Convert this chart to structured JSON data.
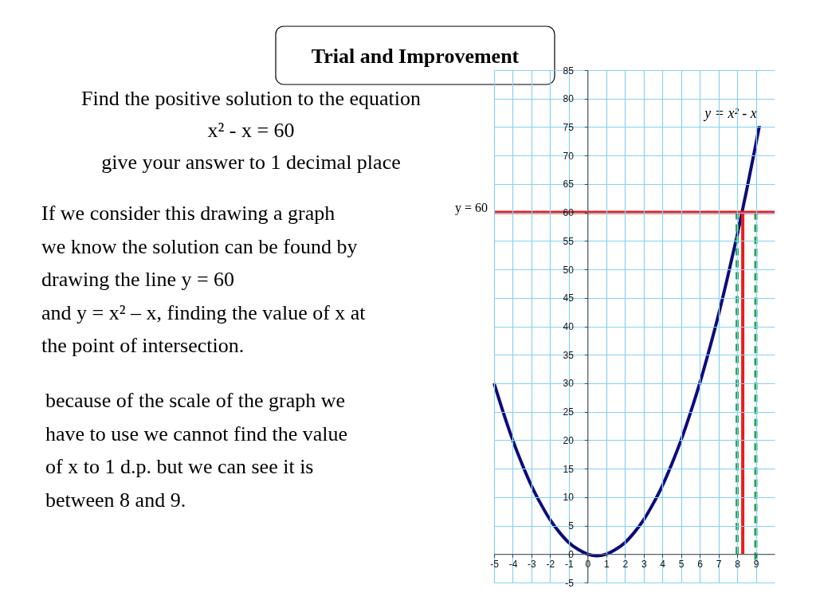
{
  "chart_data": {
    "type": "line",
    "title": "Trial and Improvement",
    "annotations": [
      "Find the positive solution to the equation\nx² - x = 60\ngive your answer to 1 decimal place",
      "If we consider this drawing a graph\nwe know the solution can be found by\ndrawing the line y = 60\nand y = x² – x, finding the value of x at\nthe point of intersection.",
      "because of the scale of the graph we\nhave to use we cannot find the value\nof x to 1 d.p. but we can see it is\nbetween 8 and 9."
    ],
    "xlim": [
      -5,
      10
    ],
    "ylim": [
      -5,
      85
    ],
    "xticks": [
      -5,
      -4,
      -3,
      -2,
      -1,
      0,
      1,
      2,
      3,
      4,
      5,
      6,
      7,
      8,
      9
    ],
    "yticks": [
      -5,
      0,
      5,
      10,
      15,
      20,
      25,
      30,
      35,
      40,
      45,
      50,
      55,
      60,
      65,
      70,
      75,
      80,
      85
    ],
    "grid": true,
    "marker": "none",
    "line_style": "solid",
    "series": [
      {
        "name": "y = x² - x",
        "color": "#0c0c7c",
        "x": [
          -5,
          -4.5,
          -4,
          -3.5,
          -3,
          -2.5,
          -2,
          -1.5,
          -1,
          -0.5,
          0,
          0.5,
          1,
          1.5,
          2,
          2.5,
          3,
          3.5,
          4,
          4.5,
          5,
          5.5,
          6,
          6.5,
          7,
          7.5,
          8,
          8.5,
          9,
          9.2
        ],
        "values": [
          30,
          24.8,
          20,
          15.8,
          12,
          8.8,
          6,
          3.8,
          2,
          0.8,
          0,
          -0.3,
          0,
          0.8,
          2,
          3.8,
          6,
          8.8,
          12,
          15.8,
          20,
          24.8,
          30,
          35.8,
          42,
          48.8,
          56,
          63.8,
          72,
          75.4
        ]
      },
      {
        "color": "#ec1c1c",
        "x": [
          8.3,
          8.3
        ],
        "values": [
          0,
          60
        ]
      },
      {
        "color": "#1fa04a",
        "line_style": "dashed",
        "x": [
          8,
          8
        ],
        "values": [
          0,
          60
        ]
      },
      {
        "color": "#1fa04a",
        "line_style": "dashed",
        "x": [
          9,
          9
        ],
        "values": [
          -1,
          60
        ]
      }
    ],
    "ref_lines": [
      {
        "axis": "y",
        "value": 60,
        "label": "y = 60",
        "color": "#ec1c1c"
      }
    ]
  }
}
